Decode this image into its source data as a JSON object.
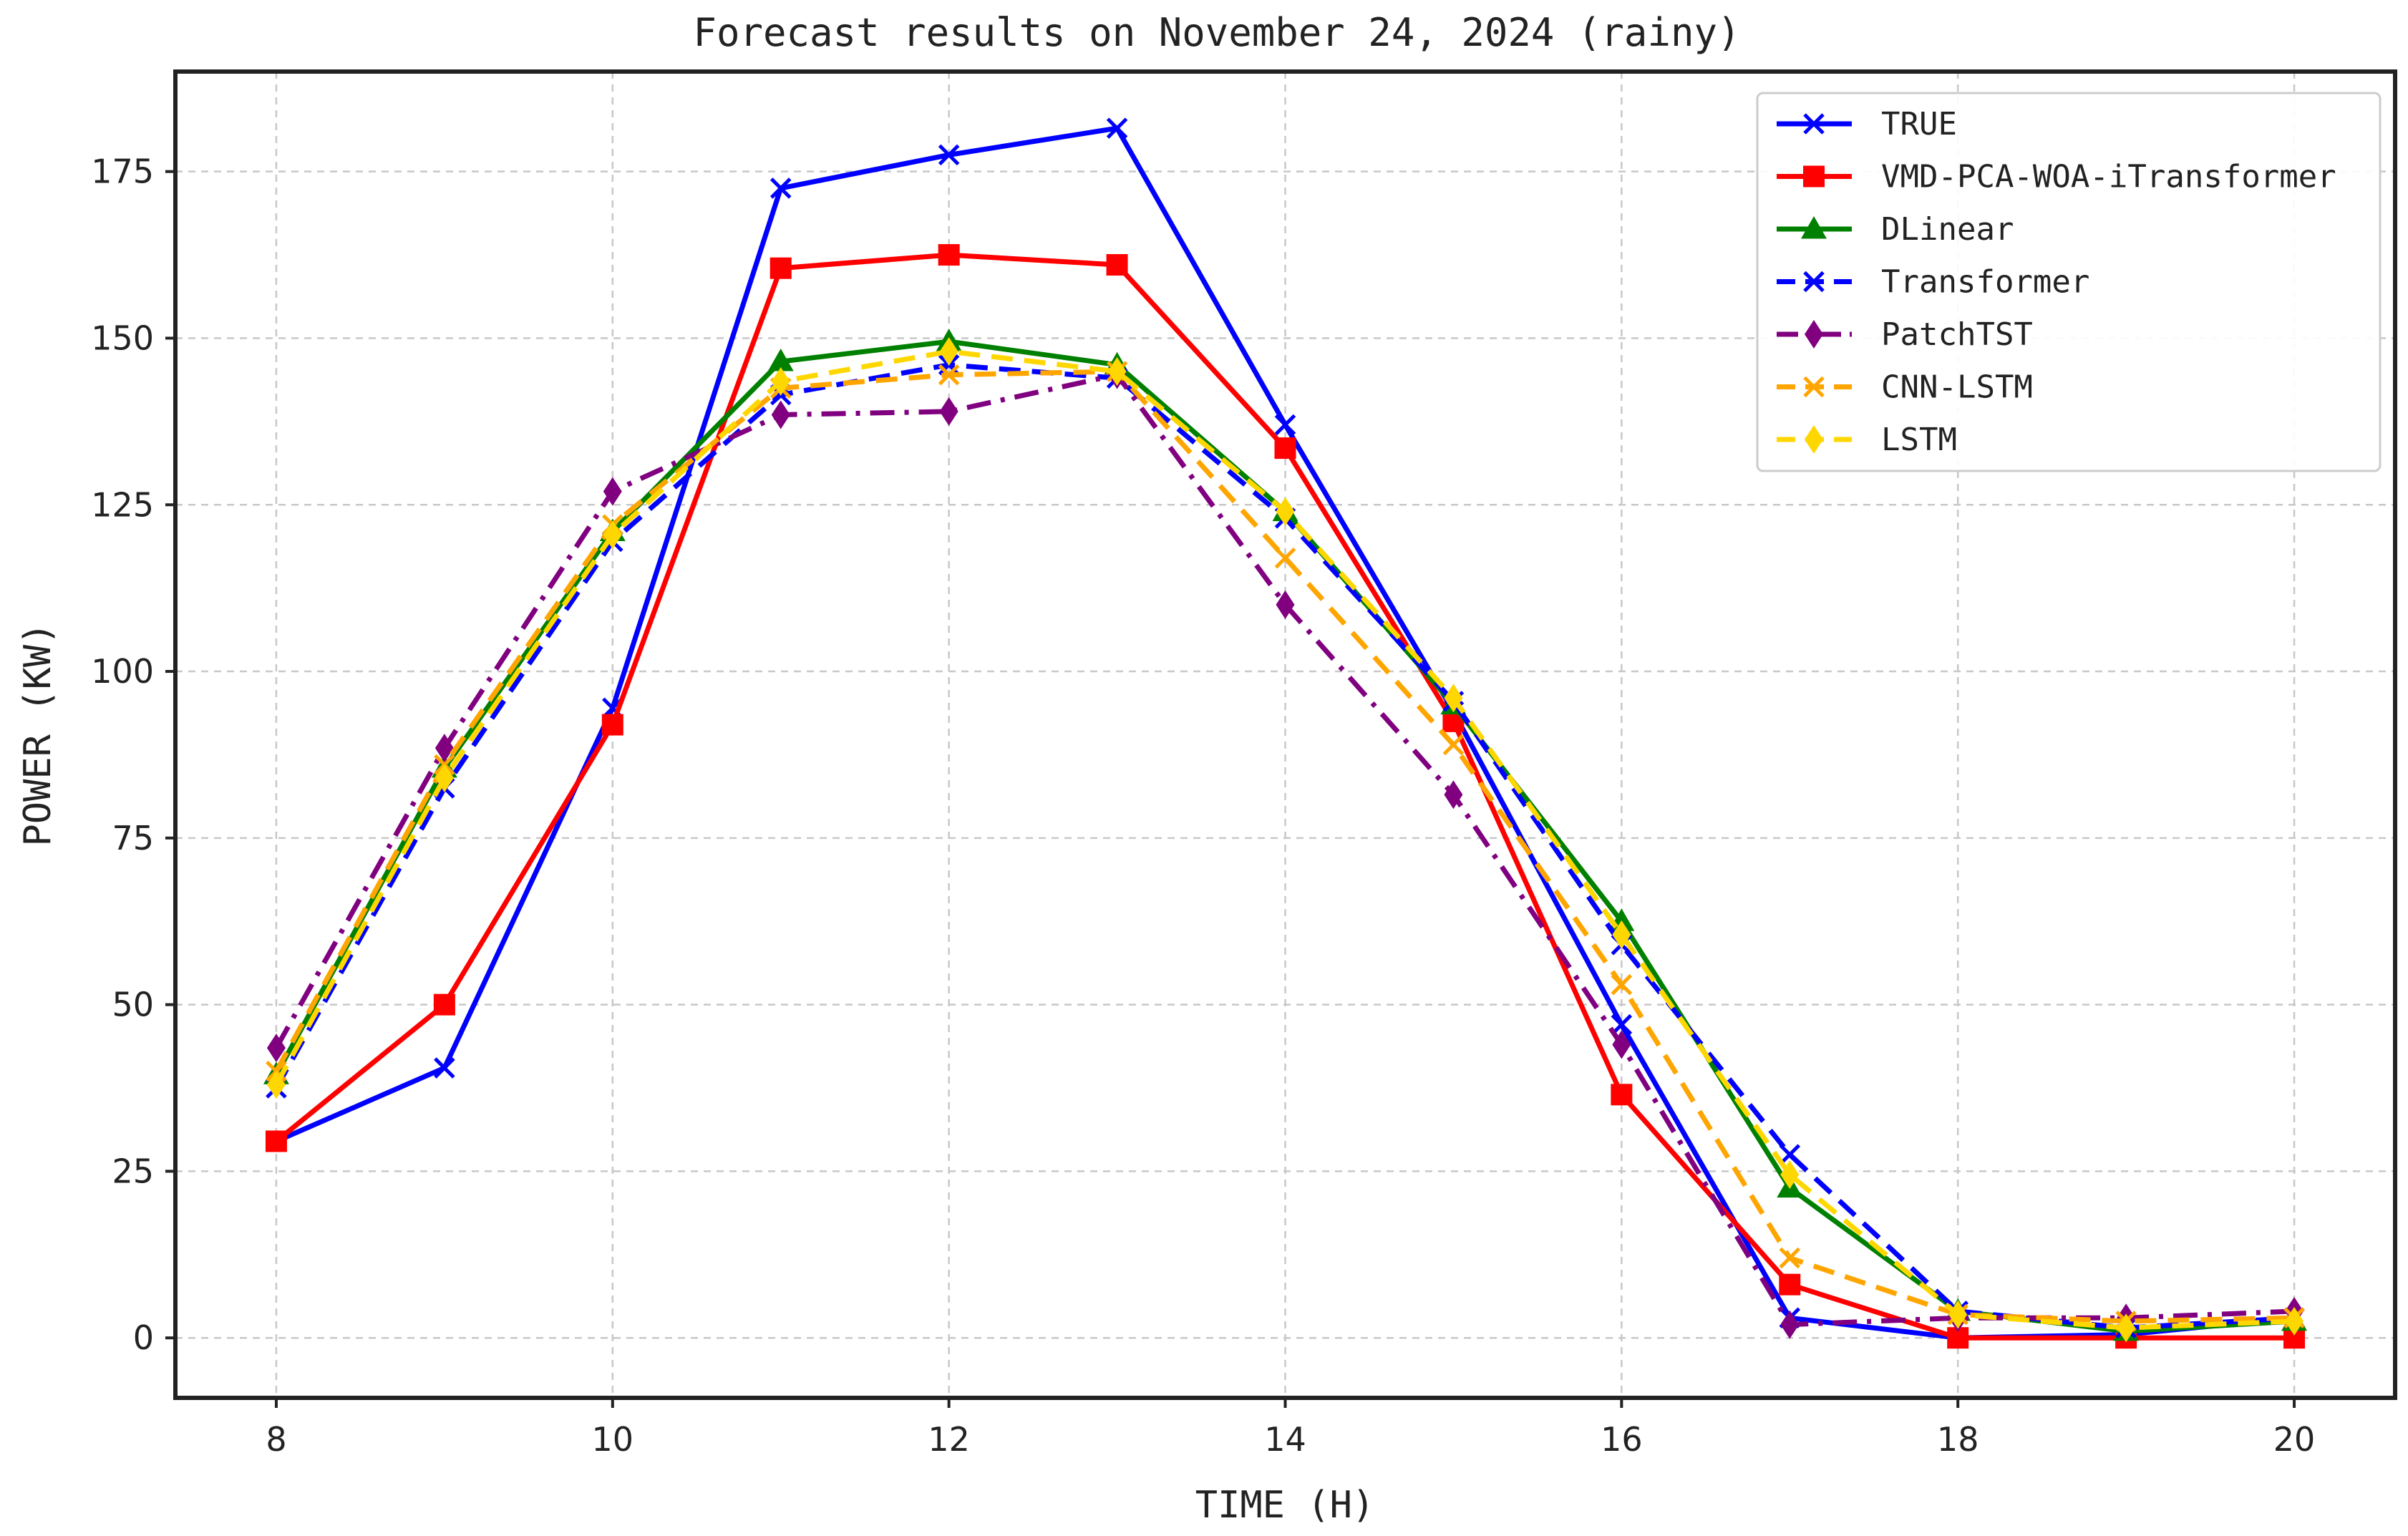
{
  "chart_data": {
    "type": "line",
    "title": "Forecast results on November 24, 2024 (rainy)",
    "xlabel": "TIME (H)",
    "ylabel": "POWER (KW)",
    "xlim": [
      7.4,
      20.6
    ],
    "ylim": [
      -9,
      190
    ],
    "x": [
      8,
      9,
      10,
      11,
      12,
      13,
      14,
      15,
      16,
      17,
      18,
      19,
      20
    ],
    "xticks": [
      8,
      10,
      12,
      14,
      16,
      18,
      20
    ],
    "yticks": [
      0,
      25,
      50,
      75,
      100,
      125,
      150,
      175
    ],
    "grid": true,
    "legend_position": "top-right",
    "series": [
      {
        "name": "TRUE",
        "color": "#0000ff",
        "linestyle": "solid",
        "marker": "x",
        "values": [
          29.5,
          40.5,
          94.5,
          172.5,
          177.5,
          181.5,
          137,
          94,
          47,
          3,
          0,
          0.5,
          3
        ]
      },
      {
        "name": "VMD-PCA-WOA-iTransformer",
        "color": "#ff0000",
        "linestyle": "solid",
        "marker": "square",
        "values": [
          29.5,
          50,
          92,
          160.5,
          162.5,
          161,
          133.5,
          92.5,
          36.5,
          8,
          0,
          0,
          0
        ]
      },
      {
        "name": "DLinear",
        "color": "#008000",
        "linestyle": "solid",
        "marker": "triangle",
        "values": [
          39.5,
          85.5,
          121,
          146.5,
          149.5,
          146,
          124,
          95,
          62.5,
          22.5,
          4,
          1,
          2.5
        ]
      },
      {
        "name": "Transformer",
        "color": "#0000ff",
        "linestyle": "dashed",
        "marker": "x",
        "values": [
          37.5,
          82.5,
          119.5,
          141.5,
          146,
          144,
          123,
          95.5,
          59,
          27.5,
          4,
          1.5,
          3
        ]
      },
      {
        "name": "PatchTST",
        "color": "#800080",
        "linestyle": "dashdot",
        "marker": "diamond",
        "values": [
          43.5,
          88.5,
          127,
          138.5,
          139,
          144.5,
          110,
          81.5,
          44,
          2,
          3,
          3,
          4
        ]
      },
      {
        "name": "CNN-LSTM",
        "color": "#ffa500",
        "linestyle": "dashed",
        "marker": "x",
        "values": [
          40,
          86,
          122,
          142.5,
          144.5,
          145,
          117,
          89,
          53,
          12,
          3.5,
          2.5,
          3
        ]
      },
      {
        "name": "LSTM",
        "color": "#ffd700",
        "linestyle": "dashed",
        "marker": "diamond",
        "values": [
          38,
          84,
          120.5,
          143.5,
          148,
          145,
          124,
          96,
          60.5,
          24.5,
          3.5,
          1.5,
          2.5
        ]
      }
    ]
  }
}
